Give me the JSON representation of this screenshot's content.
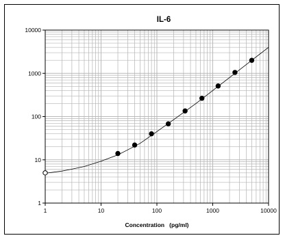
{
  "chart_data": {
    "type": "scatter",
    "title": "IL-6",
    "xlabel": "Concentration   (pg/ml)",
    "ylabel": "",
    "x_scale": "log",
    "y_scale": "log",
    "xlim": [
      1,
      10000
    ],
    "ylim": [
      1,
      10000
    ],
    "x_tick_labels": [
      "1",
      "10",
      "100",
      "1000",
      "10000"
    ],
    "y_tick_labels": [
      "1",
      "10",
      "100",
      "1000",
      "10000"
    ],
    "grid": true,
    "legend": "none",
    "series": [
      {
        "marker": "filled-circle",
        "x": [
          20,
          40,
          80,
          160,
          320,
          640,
          1250,
          2500,
          5000
        ],
        "y": [
          14,
          22,
          40,
          68,
          135,
          265,
          510,
          1050,
          2000
        ]
      },
      {
        "marker": "open-circle",
        "x": [
          1
        ],
        "y": [
          5
        ]
      }
    ],
    "fit_curve": {
      "x": [
        1,
        2,
        3,
        5,
        10,
        20,
        30,
        50,
        100,
        200,
        500,
        1000,
        2000,
        5000,
        10000
      ],
      "y": [
        4.9,
        5.5,
        6.1,
        7.0,
        9.3,
        13.0,
        17.0,
        24.0,
        45.0,
        85.0,
        200.0,
        400.0,
        800.0,
        2000.0,
        4000.0
      ]
    },
    "colors": {
      "marker": "#000000",
      "curve": "#000000",
      "grid": "#b4b4b4"
    }
  }
}
